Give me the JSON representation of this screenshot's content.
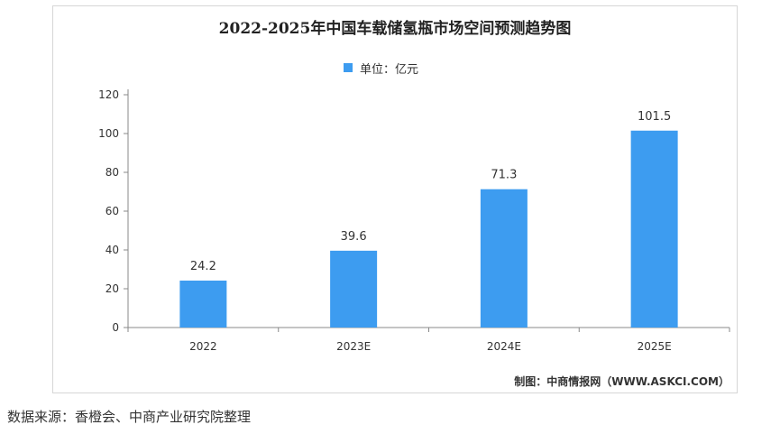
{
  "chart_data": {
    "type": "bar",
    "title": "2022-2025年中国车载储氢瓶市场空间预测趋势图",
    "categories": [
      "2022",
      "2023E",
      "2024E",
      "2025E"
    ],
    "series": [
      {
        "name": "单位：亿元",
        "values": [
          24.2,
          39.6,
          71.3,
          101.5
        ]
      }
    ],
    "data_labels": [
      "24.2",
      "39.6",
      "71.3",
      "101.5"
    ],
    "ylim": [
      0,
      120
    ],
    "yticks": [
      "0",
      "20",
      "40",
      "60",
      "80",
      "100",
      "120"
    ],
    "xlabel": "",
    "ylabel": "",
    "grid": false,
    "legend_position": "top-center",
    "bar_color": "#3d9cf0"
  },
  "credit": "制图：中商情报网（WWW.ASKCI.COM）",
  "source": "数据来源：香橙会、中商产业研究院整理"
}
